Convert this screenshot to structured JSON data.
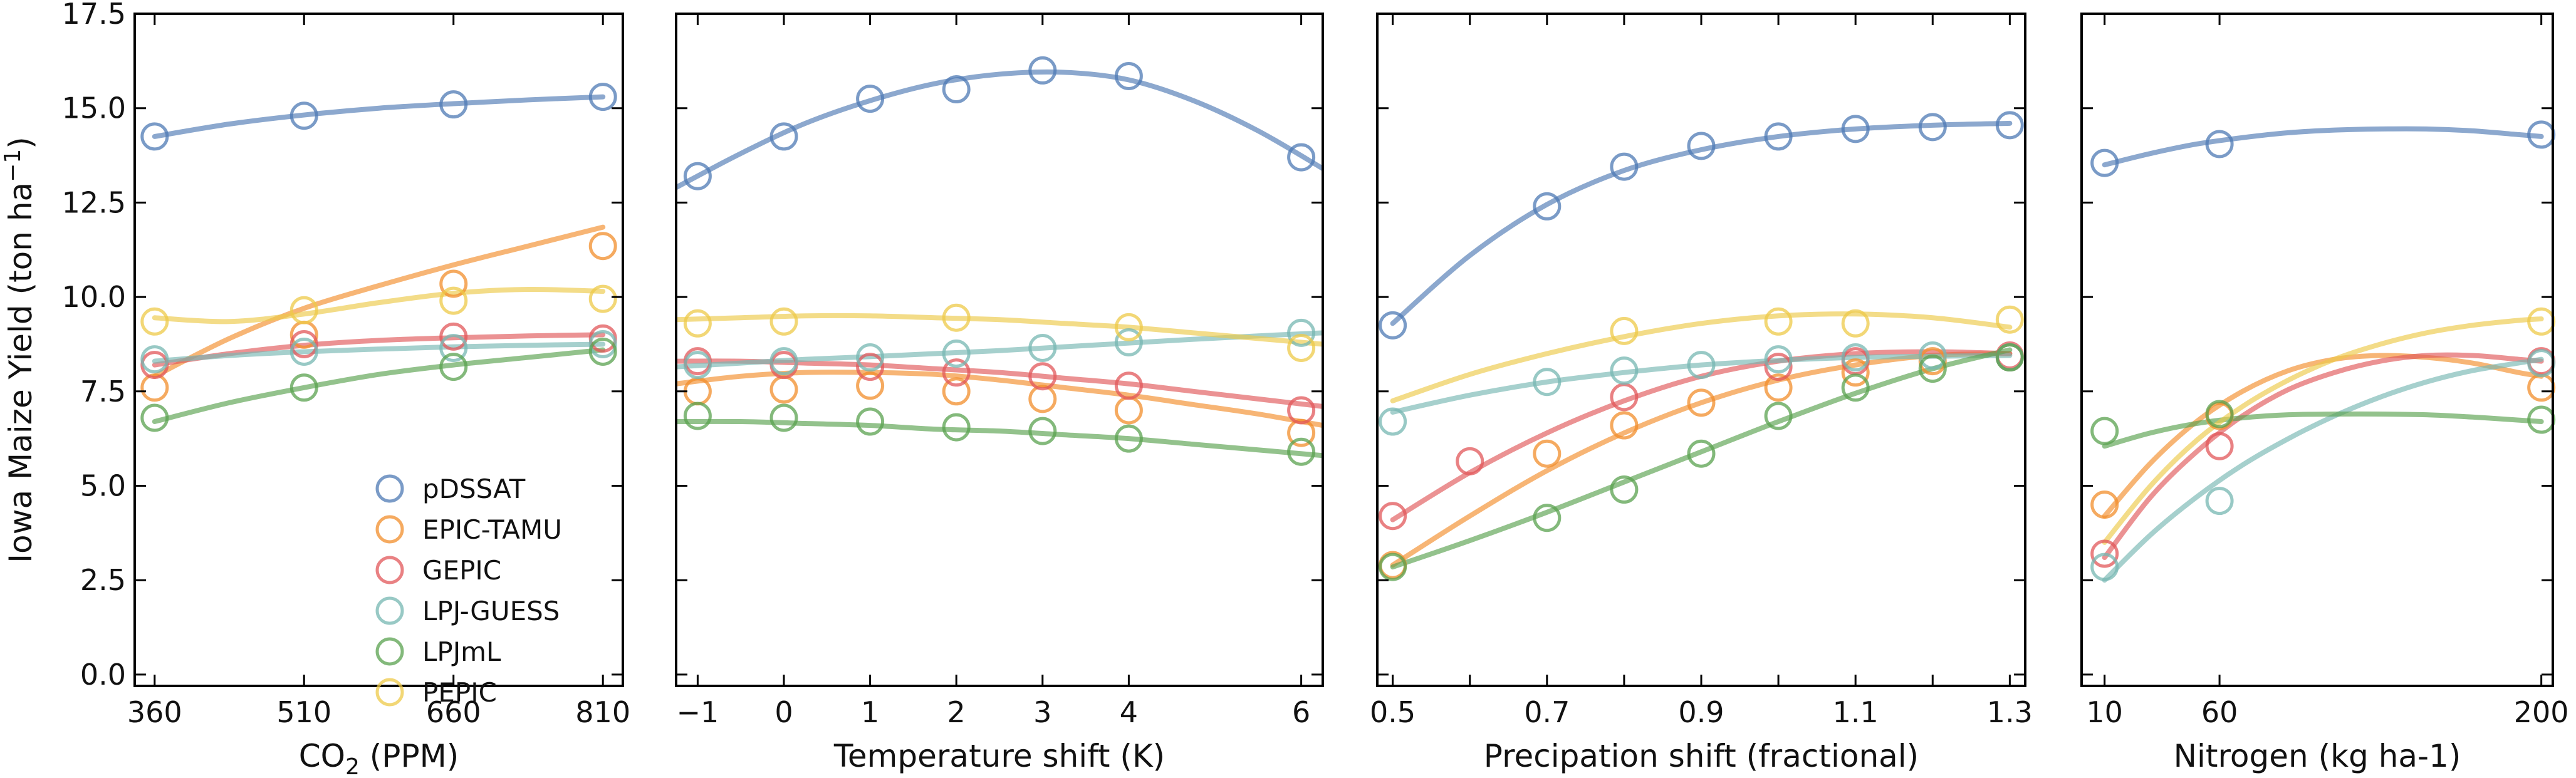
{
  "colors": {
    "pDSSAT": "#4e79b4",
    "EPIC-TAMU": "#f28e2b",
    "GEPIC": "#e15759",
    "LPJ-GUESS": "#76b7b2",
    "LPJmL": "#59a14f",
    "PEPIC": "#edc948"
  },
  "legend": {
    "entries": [
      "pDSSAT",
      "EPIC-TAMU",
      "GEPIC",
      "LPJ-GUESS",
      "LPJmL",
      "PEPIC"
    ]
  },
  "chart_data": [
    {
      "type": "scatter",
      "panel": "co2",
      "xlabel_main": "CO",
      "xlabel_sub": "2",
      "xlabel_rest": " (PPM)",
      "ylabel_main": "Iowa Maize Yield (ton ha",
      "ylabel_sup": "−1",
      "ylabel_end": ")",
      "xlim": [
        340,
        830
      ],
      "ylim": [
        -0.3,
        17.5
      ],
      "xticks": [
        360,
        510,
        660,
        810
      ],
      "xtick_labels": [
        "360",
        "510",
        "660",
        "810"
      ],
      "yticks": [
        0,
        2.5,
        5,
        7.5,
        10,
        12.5,
        15,
        17.5
      ],
      "ytick_labels": [
        "0.0",
        "2.5",
        "5.0",
        "7.5",
        "10.0",
        "12.5",
        "15.0",
        "17.5"
      ],
      "series": [
        {
          "name": "pDSSAT",
          "x": [
            360,
            510,
            660,
            810
          ],
          "y": [
            14.25,
            14.8,
            15.1,
            15.3
          ],
          "fit_x": [
            360,
            435,
            510,
            585,
            660,
            735,
            810
          ],
          "fit_y": [
            14.25,
            14.58,
            14.82,
            15.0,
            15.12,
            15.22,
            15.3
          ]
        },
        {
          "name": "EPIC-TAMU",
          "x": [
            360,
            510,
            660,
            810
          ],
          "y": [
            7.6,
            9.0,
            10.35,
            11.35
          ],
          "fit_x": [
            360,
            435,
            510,
            585,
            660,
            735,
            810
          ],
          "fit_y": [
            7.9,
            8.9,
            9.7,
            10.3,
            10.85,
            11.35,
            11.85
          ]
        },
        {
          "name": "GEPIC",
          "x": [
            360,
            510,
            660,
            810
          ],
          "y": [
            8.2,
            8.75,
            8.95,
            8.9
          ],
          "fit_x": [
            360,
            435,
            510,
            585,
            660,
            735,
            810
          ],
          "fit_y": [
            8.2,
            8.5,
            8.72,
            8.85,
            8.92,
            8.97,
            9.0
          ]
        },
        {
          "name": "LPJ-GUESS",
          "x": [
            360,
            510,
            660,
            810
          ],
          "y": [
            8.35,
            8.55,
            8.65,
            8.75
          ],
          "fit_x": [
            360,
            435,
            510,
            585,
            660,
            735,
            810
          ],
          "fit_y": [
            8.3,
            8.45,
            8.55,
            8.62,
            8.68,
            8.72,
            8.75
          ]
        },
        {
          "name": "LPJmL",
          "x": [
            360,
            510,
            660,
            810
          ],
          "y": [
            6.8,
            7.6,
            8.15,
            8.55
          ],
          "fit_x": [
            360,
            435,
            510,
            585,
            660,
            735,
            810
          ],
          "fit_y": [
            6.7,
            7.2,
            7.6,
            7.95,
            8.2,
            8.4,
            8.6
          ]
        },
        {
          "name": "PEPIC",
          "x": [
            360,
            510,
            660,
            810
          ],
          "y": [
            9.35,
            9.65,
            9.9,
            9.95
          ],
          "fit_x": [
            360,
            435,
            510,
            585,
            660,
            735,
            810
          ],
          "fit_y": [
            9.45,
            9.35,
            9.55,
            9.85,
            10.1,
            10.2,
            10.15
          ]
        }
      ]
    },
    {
      "type": "scatter",
      "panel": "temperature",
      "xlabel_main": "Temperature shift (K)",
      "xlim": [
        -1.25,
        6.25
      ],
      "ylim": [
        -0.3,
        17.5
      ],
      "xticks": [
        -1,
        0,
        1,
        2,
        3,
        4,
        6
      ],
      "xtick_labels": [
        "−1",
        "0",
        "1",
        "2",
        "3",
        "4",
        "6"
      ],
      "series": [
        {
          "name": "pDSSAT",
          "x": [
            -1,
            0,
            1,
            2,
            3,
            4,
            6
          ],
          "y": [
            13.2,
            14.25,
            15.25,
            15.5,
            16.0,
            15.85,
            13.7
          ],
          "fit_x": [
            -1.25,
            -0.5,
            0.25,
            1,
            1.75,
            2.5,
            3.25,
            4,
            4.75,
            5.5,
            6.25
          ],
          "fit_y": [
            12.9,
            13.8,
            14.6,
            15.2,
            15.65,
            15.9,
            15.95,
            15.75,
            15.2,
            14.4,
            13.4
          ]
        },
        {
          "name": "EPIC-TAMU",
          "x": [
            -1,
            0,
            1,
            2,
            3,
            4,
            6
          ],
          "y": [
            7.5,
            7.55,
            7.65,
            7.5,
            7.3,
            7.0,
            6.4
          ],
          "fit_x": [
            -1.25,
            -0.5,
            0.25,
            1,
            1.75,
            2.5,
            3.25,
            4,
            4.75,
            5.5,
            6.25
          ],
          "fit_y": [
            7.7,
            7.9,
            8.0,
            8.0,
            7.95,
            7.8,
            7.6,
            7.4,
            7.15,
            6.9,
            6.6
          ]
        },
        {
          "name": "GEPIC",
          "x": [
            -1,
            0,
            1,
            2,
            3,
            4,
            6
          ],
          "y": [
            8.3,
            8.2,
            8.15,
            8.0,
            7.9,
            7.65,
            7.0
          ],
          "fit_x": [
            -1.25,
            -0.5,
            0.25,
            1,
            1.75,
            2.5,
            3.25,
            4,
            4.75,
            5.5,
            6.25
          ],
          "fit_y": [
            8.3,
            8.3,
            8.25,
            8.2,
            8.1,
            8.0,
            7.85,
            7.7,
            7.5,
            7.3,
            7.1
          ]
        },
        {
          "name": "LPJ-GUESS",
          "x": [
            -1,
            0,
            1,
            2,
            3,
            4,
            6
          ],
          "y": [
            8.2,
            8.3,
            8.4,
            8.5,
            8.65,
            8.8,
            9.05
          ],
          "fit_x": [
            -1.25,
            -0.5,
            0.25,
            1,
            1.75,
            2.5,
            3.25,
            4,
            4.75,
            5.5,
            6.25
          ],
          "fit_y": [
            8.15,
            8.25,
            8.35,
            8.42,
            8.5,
            8.58,
            8.68,
            8.78,
            8.88,
            8.97,
            9.05
          ]
        },
        {
          "name": "LPJmL",
          "x": [
            -1,
            0,
            1,
            2,
            3,
            4,
            6
          ],
          "y": [
            6.85,
            6.8,
            6.7,
            6.55,
            6.45,
            6.25,
            5.9
          ],
          "fit_x": [
            -1.25,
            -0.5,
            0.25,
            1,
            1.75,
            2.5,
            3.25,
            4,
            4.75,
            5.5,
            6.25
          ],
          "fit_y": [
            6.7,
            6.7,
            6.65,
            6.6,
            6.5,
            6.45,
            6.35,
            6.25,
            6.1,
            5.95,
            5.8
          ]
        },
        {
          "name": "PEPIC",
          "x": [
            -1,
            0,
            2,
            4,
            6
          ],
          "y": [
            9.3,
            9.35,
            9.45,
            9.2,
            8.65
          ],
          "fit_x": [
            -1.25,
            -0.5,
            0.25,
            1,
            1.75,
            2.5,
            3.25,
            4,
            4.75,
            5.5,
            6.25
          ],
          "fit_y": [
            9.4,
            9.45,
            9.5,
            9.5,
            9.45,
            9.4,
            9.3,
            9.2,
            9.05,
            8.9,
            8.75
          ]
        }
      ]
    },
    {
      "type": "scatter",
      "panel": "precipitation",
      "xlabel_main": "Precipation shift (fractional)",
      "xlim": [
        0.48,
        1.32
      ],
      "ylim": [
        -0.3,
        17.5
      ],
      "xticks": [
        0.5,
        0.6,
        0.7,
        0.8,
        0.9,
        1.0,
        1.1,
        1.2,
        1.3
      ],
      "xtick_labels": [
        "0.5",
        "",
        "0.7",
        "",
        "0.9",
        "",
        "1.1",
        "",
        "1.3"
      ],
      "series": [
        {
          "name": "pDSSAT",
          "x": [
            0.5,
            0.7,
            0.8,
            0.9,
            1.0,
            1.1,
            1.2,
            1.3
          ],
          "y": [
            9.25,
            12.4,
            13.45,
            14.0,
            14.25,
            14.45,
            14.5,
            14.55
          ],
          "fit_x": [
            0.5,
            0.6,
            0.7,
            0.8,
            0.9,
            1.0,
            1.1,
            1.2,
            1.3
          ],
          "fit_y": [
            9.3,
            11.1,
            12.45,
            13.35,
            13.9,
            14.25,
            14.45,
            14.55,
            14.6
          ]
        },
        {
          "name": "EPIC-TAMU",
          "x": [
            0.5,
            0.7,
            0.8,
            0.9,
            1.0,
            1.1,
            1.2,
            1.3
          ],
          "y": [
            2.9,
            5.85,
            6.6,
            7.2,
            7.6,
            8.0,
            8.3,
            8.4
          ],
          "fit_x": [
            0.5,
            0.6,
            0.7,
            0.8,
            0.9,
            1.0,
            1.1,
            1.2,
            1.3
          ],
          "fit_y": [
            2.9,
            4.2,
            5.4,
            6.4,
            7.2,
            7.8,
            8.2,
            8.45,
            8.5
          ]
        },
        {
          "name": "GEPIC",
          "x": [
            0.5,
            0.6,
            0.8,
            1.0,
            1.1,
            1.3
          ],
          "y": [
            4.2,
            5.65,
            7.35,
            8.15,
            8.3,
            8.45
          ],
          "fit_x": [
            0.5,
            0.6,
            0.7,
            0.8,
            0.9,
            1.0,
            1.1,
            1.2,
            1.3
          ],
          "fit_y": [
            4.1,
            5.35,
            6.4,
            7.25,
            7.9,
            8.3,
            8.5,
            8.55,
            8.5
          ]
        },
        {
          "name": "LPJ-GUESS",
          "x": [
            0.5,
            0.7,
            0.8,
            0.9,
            1.0,
            1.1,
            1.2,
            1.3
          ],
          "y": [
            6.7,
            7.75,
            8.05,
            8.2,
            8.35,
            8.4,
            8.45,
            8.4
          ],
          "fit_x": [
            0.5,
            0.6,
            0.7,
            0.8,
            0.9,
            1.0,
            1.1,
            1.2,
            1.3
          ],
          "fit_y": [
            6.95,
            7.4,
            7.75,
            8.0,
            8.2,
            8.32,
            8.4,
            8.43,
            8.45
          ]
        },
        {
          "name": "LPJmL",
          "x": [
            0.5,
            0.7,
            0.8,
            0.9,
            1.0,
            1.1,
            1.2,
            1.3
          ],
          "y": [
            2.85,
            4.15,
            4.9,
            5.85,
            6.85,
            7.6,
            8.1,
            8.4
          ],
          "fit_x": [
            0.5,
            0.6,
            0.7,
            0.8,
            0.9,
            1.0,
            1.1,
            1.2,
            1.3
          ],
          "fit_y": [
            2.85,
            3.55,
            4.3,
            5.1,
            5.9,
            6.7,
            7.45,
            8.1,
            8.6
          ]
        },
        {
          "name": "PEPIC",
          "x": [
            0.8,
            1.0,
            1.1,
            1.3
          ],
          "y": [
            9.1,
            9.35,
            9.3,
            9.4
          ],
          "fit_x": [
            0.5,
            0.6,
            0.7,
            0.8,
            0.9,
            1.0,
            1.1,
            1.2,
            1.3
          ],
          "fit_y": [
            7.25,
            7.95,
            8.5,
            8.95,
            9.3,
            9.5,
            9.55,
            9.45,
            9.2
          ]
        }
      ]
    },
    {
      "type": "scatter",
      "panel": "nitrogen",
      "xlabel_main": "Nitrogen (kg ha-1)",
      "xlim": [
        0,
        205
      ],
      "ylim": [
        -0.3,
        17.5
      ],
      "xticks": [
        10,
        60,
        200
      ],
      "xtick_labels": [
        "10",
        "60",
        "200"
      ],
      "series": [
        {
          "name": "pDSSAT",
          "x": [
            10,
            60,
            200
          ],
          "y": [
            13.55,
            14.05,
            14.3
          ],
          "fit_x": [
            10,
            30,
            50,
            70,
            90,
            110,
            130,
            150,
            170,
            190,
            200
          ],
          "fit_y": [
            13.5,
            13.8,
            14.05,
            14.22,
            14.35,
            14.42,
            14.45,
            14.45,
            14.4,
            14.3,
            14.25
          ]
        },
        {
          "name": "EPIC-TAMU",
          "x": [
            10,
            60,
            200
          ],
          "y": [
            4.5,
            6.85,
            7.6
          ],
          "fit_x": [
            10,
            30,
            50,
            70,
            90,
            110,
            130,
            150,
            170,
            190,
            200
          ],
          "fit_y": [
            4.2,
            5.6,
            6.7,
            7.5,
            8.05,
            8.35,
            8.45,
            8.4,
            8.25,
            8.0,
            7.9
          ]
        },
        {
          "name": "GEPIC",
          "x": [
            10,
            60,
            200
          ],
          "y": [
            3.2,
            6.05,
            8.3
          ],
          "fit_x": [
            10,
            30,
            50,
            70,
            90,
            110,
            130,
            150,
            170,
            190,
            200
          ],
          "fit_y": [
            3.1,
            4.7,
            5.9,
            6.85,
            7.55,
            8.0,
            8.3,
            8.45,
            8.45,
            8.35,
            8.3
          ]
        },
        {
          "name": "LPJ-GUESS",
          "x": [
            10,
            60,
            200
          ],
          "y": [
            2.85,
            4.6,
            8.25
          ],
          "fit_x": [
            10,
            30,
            50,
            70,
            90,
            110,
            130,
            150,
            170,
            190,
            200
          ],
          "fit_y": [
            2.5,
            3.7,
            4.7,
            5.55,
            6.25,
            6.85,
            7.35,
            7.75,
            8.05,
            8.25,
            8.35
          ]
        },
        {
          "name": "LPJmL",
          "x": [
            10,
            60,
            200
          ],
          "y": [
            6.45,
            6.9,
            6.75
          ],
          "fit_x": [
            10,
            30,
            50,
            70,
            90,
            110,
            130,
            150,
            170,
            190,
            200
          ],
          "fit_y": [
            6.05,
            6.4,
            6.65,
            6.8,
            6.88,
            6.9,
            6.9,
            6.88,
            6.82,
            6.74,
            6.7
          ]
        },
        {
          "name": "PEPIC",
          "x": [
            200
          ],
          "y": [
            9.35
          ],
          "fit_x": [
            10,
            30,
            50,
            70,
            90,
            110,
            130,
            150,
            170,
            190,
            200
          ],
          "fit_y": [
            3.5,
            5.0,
            6.2,
            7.1,
            7.8,
            8.35,
            8.75,
            9.05,
            9.25,
            9.38,
            9.42
          ]
        }
      ]
    }
  ]
}
